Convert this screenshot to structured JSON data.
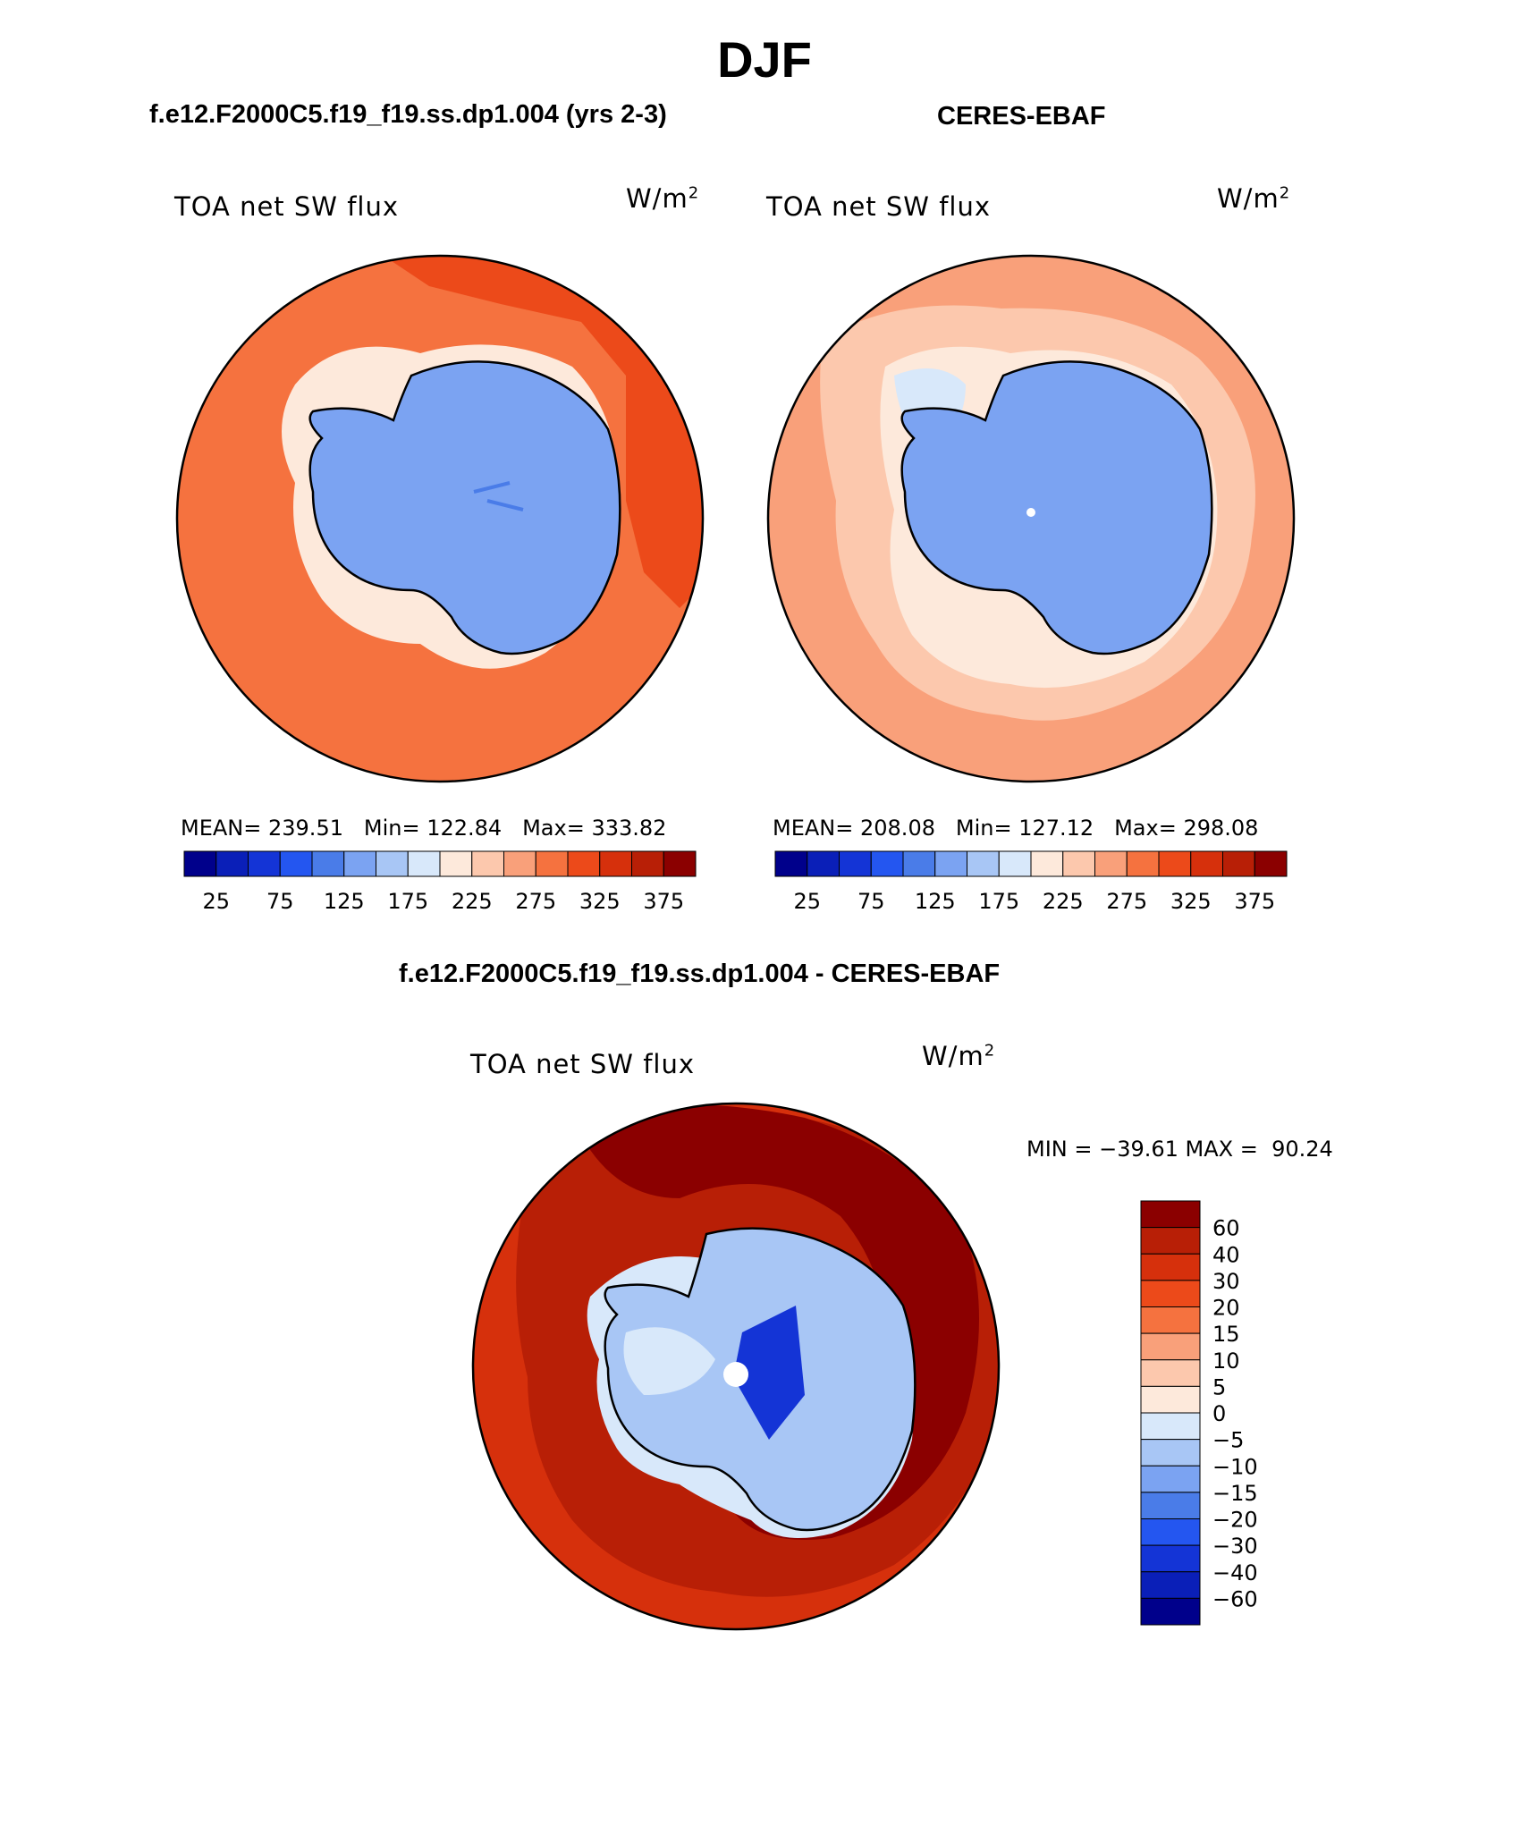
{
  "figure": {
    "season": "DJF",
    "panels": {
      "model": {
        "title": "f.e12.F2000C5.f19_f19.ss.dp1.004 (yrs 2-3)",
        "variable": "TOA net SW flux",
        "units": "W/m",
        "units_exp": "2",
        "mean_label": "MEAN=",
        "mean": "239.51",
        "min_label": "Min=",
        "min": "122.84",
        "max_label": "Max=",
        "max": "333.82"
      },
      "obs": {
        "title": "CERES-EBAF",
        "variable": "TOA net SW flux",
        "units": "W/m",
        "units_exp": "2",
        "mean_label": "MEAN=",
        "mean": "208.08",
        "min_label": "Min=",
        "min": "127.12",
        "max_label": "Max=",
        "max": "298.08"
      },
      "diff": {
        "title": "f.e12.F2000C5.f19_f19.ss.dp1.004 - CERES-EBAF",
        "variable": "TOA net SW flux",
        "units": "W/m",
        "units_exp": "2",
        "minmax_text": "MIN = −39.61 MAX =  90.24"
      }
    },
    "abs_colorbar": {
      "colors": [
        "#00008b",
        "#0a1fb8",
        "#1434d6",
        "#2456f0",
        "#4a7ce8",
        "#7ba3f2",
        "#a8c6f5",
        "#d8e8fa",
        "#fde9db",
        "#fcc8ad",
        "#f9a07a",
        "#f5723f",
        "#ec4a1a",
        "#d6300c",
        "#b81f06",
        "#8b0000"
      ],
      "tick_labels": [
        "25",
        "75",
        "125",
        "175",
        "225",
        "275",
        "325",
        "375"
      ]
    },
    "diff_colorbar": {
      "colors": [
        "#00008b",
        "#0a1fb8",
        "#1434d6",
        "#2456f0",
        "#4a7ce8",
        "#7ba3f2",
        "#a8c6f5",
        "#d8e8fa",
        "#fde9db",
        "#fcc8ad",
        "#f9a07a",
        "#f5723f",
        "#ec4a1a",
        "#d6300c",
        "#b81f06",
        "#8b0000"
      ],
      "tick_labels": [
        "60",
        "40",
        "30",
        "20",
        "15",
        "10",
        "5",
        "0",
        "−5",
        "−10",
        "−15",
        "−20",
        "−30",
        "−40",
        "−60"
      ]
    },
    "map_colors": {
      "ocean_model_outer": "#f5723f",
      "ocean_model_mid": "#ec4a1a",
      "ocean_obs_outer": "#f9a07a",
      "ocean_obs_inner": "#fcc8ad",
      "sea_ice_light": "#fde9db",
      "ice_sheet": "#7ba3f2",
      "ice_sheet_dark": "#4a7ce8",
      "diff_outer": "#d6300c",
      "diff_far": "#b81f06",
      "diff_dark": "#8b0000",
      "diff_ice": "#a8c6f5",
      "diff_ice_dark": "#1434d6",
      "diff_ice_light": "#d8e8fa"
    }
  }
}
